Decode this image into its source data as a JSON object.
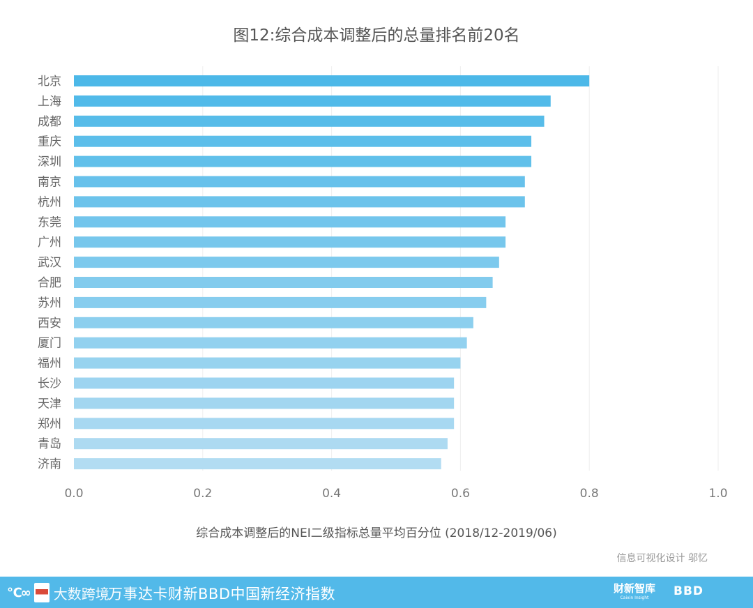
{
  "chart_data": {
    "type": "bar",
    "orientation": "horizontal",
    "title": "图12:综合成本调整后的总量排名前20名",
    "categories": [
      "北京",
      "上海",
      "成都",
      "重庆",
      "深圳",
      "南京",
      "杭州",
      "东莞",
      "广州",
      "武汉",
      "合肥",
      "苏州",
      "西安",
      "厦门",
      "福州",
      "长沙",
      "天津",
      "郑州",
      "青岛",
      "济南"
    ],
    "values": [
      0.8,
      0.74,
      0.73,
      0.71,
      0.71,
      0.7,
      0.7,
      0.67,
      0.67,
      0.66,
      0.65,
      0.64,
      0.62,
      0.61,
      0.6,
      0.59,
      0.59,
      0.59,
      0.58,
      0.57
    ],
    "xlabel": "综合成本调整后的NEI二级指标总量平均百分位 (2018/12-2019/06)",
    "ylabel": "",
    "xlim": [
      0,
      1.0
    ],
    "xticks": [
      "0.0",
      "0.2",
      "0.4",
      "0.6",
      "0.8",
      "1.0"
    ],
    "grid": "vertical",
    "bar_color_top": "#4cb8e8",
    "bar_color_bottom": "#b2dcf2"
  },
  "credit": "信息可视化设计 邬忆",
  "footer": {
    "logo_text": "大数跨境",
    "title": "万事达卡财新BBD中国新经济指数",
    "brand1": "财新智库",
    "brand1_sub": "Caixin Insight",
    "brand2": "BBD",
    "bar_color": "#52b9e9"
  },
  "colors": {
    "title": "#555555",
    "label": "#666666",
    "grid": "#eeeeee"
  }
}
